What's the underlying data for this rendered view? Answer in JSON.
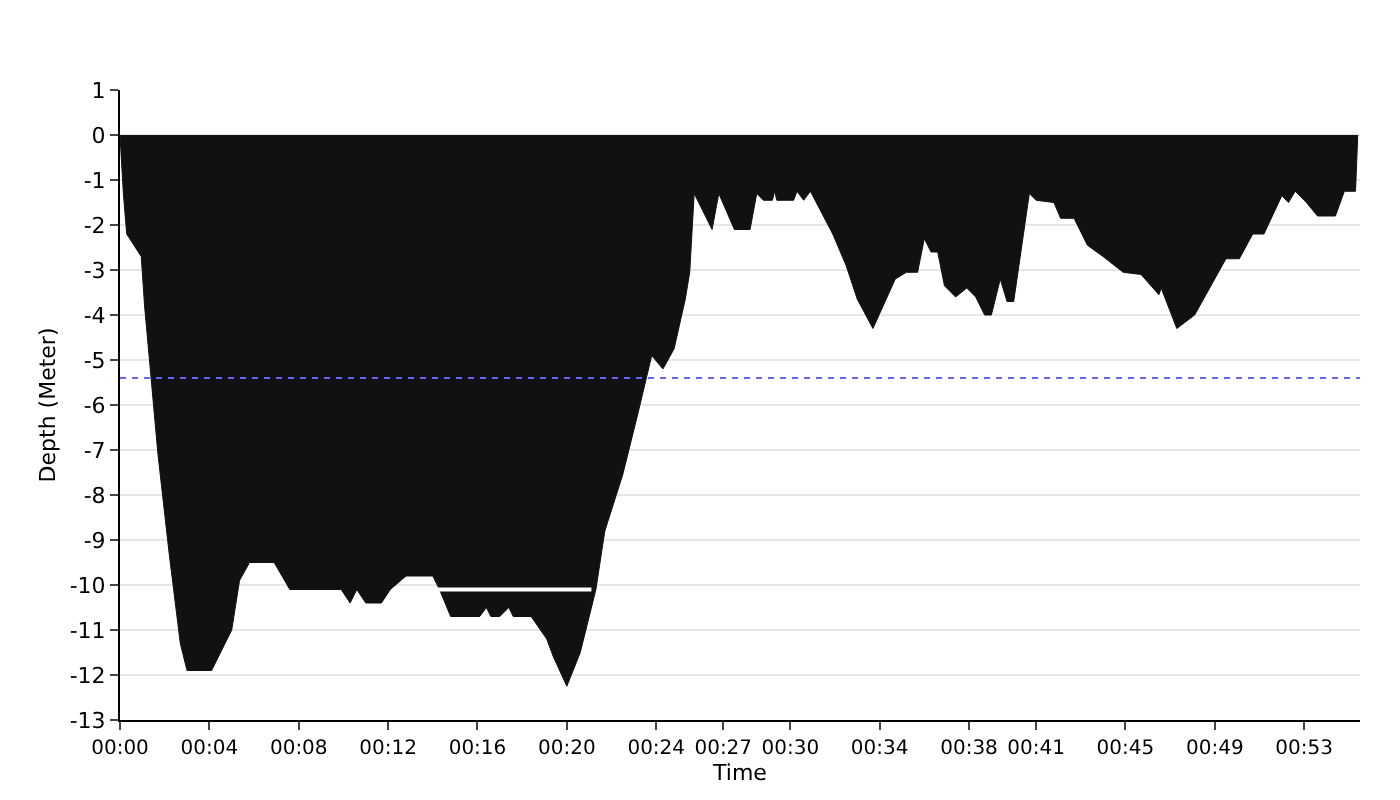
{
  "chart_data": {
    "type": "area",
    "xlabel": "Time",
    "ylabel": "Depth (Meter)",
    "series": [
      {
        "color": "#111111",
        "x": [
          0,
          0.15,
          0.3,
          0.95,
          1.1,
          1.7,
          2.2,
          2.7,
          3.0,
          4.1,
          5.0,
          5.35,
          5.8,
          6.9,
          7.6,
          9.9,
          10.3,
          10.6,
          11.0,
          11.7,
          12.1,
          12.8,
          14.0,
          14.3,
          14.8,
          16.1,
          16.4,
          16.6,
          17.0,
          17.4,
          17.6,
          18.4,
          19.1,
          19.4,
          20.0,
          20.6,
          21.3,
          21.7,
          22.5,
          23.2,
          23.8,
          24.3,
          24.8,
          25.3,
          25.5,
          25.7,
          26.5,
          26.8,
          27.15,
          27.5,
          28.2,
          28.5,
          28.8,
          29.2,
          29.3,
          29.4,
          30.15,
          30.3,
          30.6,
          30.9,
          31.9,
          32.5,
          33.0,
          33.7,
          34.7,
          35.2,
          35.7,
          36.0,
          36.3,
          36.6,
          36.9,
          37.4,
          37.9,
          38.3,
          38.7,
          39.0,
          39.4,
          39.7,
          40.0,
          40.7,
          41.0,
          41.8,
          42.1,
          42.7,
          43.3,
          44.0,
          44.9,
          45.7,
          46.5,
          46.6,
          47.3,
          48.1,
          49.5,
          50.1,
          50.7,
          51.2,
          52.0,
          52.3,
          52.6,
          53.1,
          53.6,
          54.4,
          54.8,
          55.3,
          55.4
        ],
        "values": [
          0,
          -1.3,
          -2.2,
          -2.7,
          -3.8,
          -7.1,
          -9.3,
          -11.3,
          -11.9,
          -11.9,
          -11.0,
          -9.9,
          -9.5,
          -9.5,
          -10.1,
          -10.1,
          -10.4,
          -10.1,
          -10.4,
          -10.4,
          -10.1,
          -9.8,
          -9.8,
          -10.1,
          -10.7,
          -10.7,
          -10.5,
          -10.7,
          -10.7,
          -10.5,
          -10.7,
          -10.7,
          -11.2,
          -11.6,
          -12.25,
          -11.5,
          -10.1,
          -8.8,
          -7.55,
          -6.15,
          -4.9,
          -5.2,
          -4.75,
          -3.65,
          -3.05,
          -1.3,
          -2.1,
          -1.3,
          -1.7,
          -2.1,
          -2.1,
          -1.3,
          -1.45,
          -1.45,
          -1.25,
          -1.45,
          -1.45,
          -1.25,
          -1.45,
          -1.25,
          -2.2,
          -2.9,
          -3.65,
          -4.3,
          -3.2,
          -3.05,
          -3.05,
          -2.3,
          -2.6,
          -2.6,
          -3.35,
          -3.6,
          -3.4,
          -3.6,
          -4.0,
          -4.0,
          -3.2,
          -3.7,
          -3.7,
          -1.3,
          -1.45,
          -1.5,
          -1.85,
          -1.85,
          -2.45,
          -2.7,
          -3.05,
          -3.1,
          -3.55,
          -3.4,
          -4.3,
          -4.0,
          -2.75,
          -2.75,
          -2.2,
          -2.2,
          -1.35,
          -1.5,
          -1.25,
          -1.5,
          -1.8,
          -1.8,
          -1.25,
          -1.25,
          0
        ]
      },
      {
        "type": "line",
        "color": "#ffffff",
        "x": [
          12.4,
          16.0,
          21.1
        ],
        "values": [
          -10.1,
          -10.1,
          -10.1
        ]
      }
    ],
    "xlim": [
      0,
      55.5
    ],
    "xticks": [
      {
        "value": 0,
        "label": "00:00"
      },
      {
        "value": 4,
        "label": "00:04"
      },
      {
        "value": 8,
        "label": "00:08"
      },
      {
        "value": 12,
        "label": "00:12"
      },
      {
        "value": 16,
        "label": "00:16"
      },
      {
        "value": 20,
        "label": "00:20"
      },
      {
        "value": 24,
        "label": "00:24"
      },
      {
        "value": 27,
        "label": "00:27"
      },
      {
        "value": 30,
        "label": "00:30"
      },
      {
        "value": 34,
        "label": "00:34"
      },
      {
        "value": 38,
        "label": "00:38"
      },
      {
        "value": 41,
        "label": "00:41"
      },
      {
        "value": 45,
        "label": "00:45"
      },
      {
        "value": 49,
        "label": "00:49"
      },
      {
        "value": 53,
        "label": "00:53"
      }
    ],
    "ylim": [
      -13,
      1
    ],
    "yticks": [
      -13,
      -12,
      -11,
      -10,
      -9,
      -8,
      -7,
      -6,
      -5,
      -4,
      -3,
      -2,
      -1,
      0,
      1
    ],
    "ref_lines": [
      {
        "axis": "y",
        "value": -5.4,
        "color": "#6666ff",
        "line_style": "dotted"
      }
    ],
    "grid": "y"
  }
}
